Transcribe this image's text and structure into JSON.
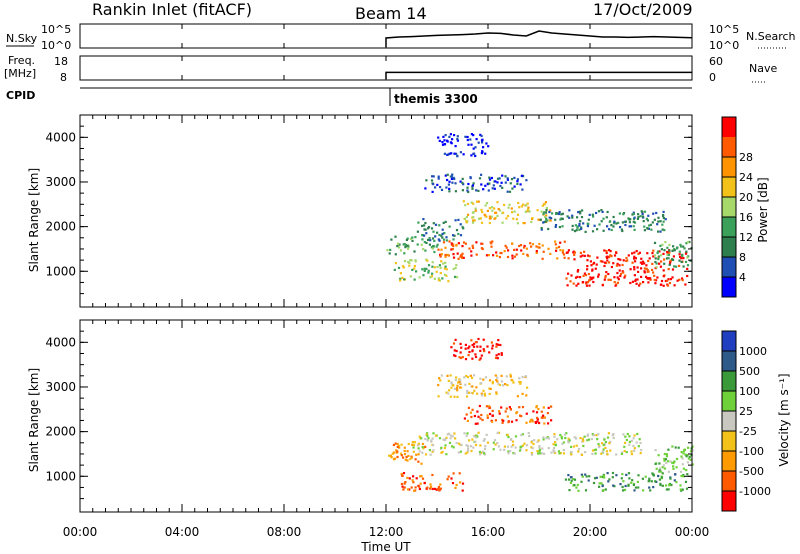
{
  "header": {
    "station": "Rankin Inlet (fitACF)",
    "beam": "Beam 14",
    "date": "17/Oct/2009"
  },
  "strip_panels": {
    "nsky": {
      "left_label": "N.Sky",
      "left_ticks": [
        "10^5",
        "10^0"
      ],
      "right_label": "N.Search",
      "right_ticks": [
        "10^5",
        "10^0"
      ]
    },
    "freq": {
      "left_label": "Freq.",
      "left_units": "[MHz]",
      "left_ticks": [
        "18",
        "8"
      ],
      "right_label": "Nave",
      "right_ticks": [
        "60",
        "0"
      ]
    },
    "cpid": {
      "label": "CPID",
      "program": "themis 3300"
    }
  },
  "colors": {
    "power_scale": [
      "#0000ff",
      "#1f4fb4",
      "#2e7f4e",
      "#3aa05a",
      "#a6d96a",
      "#f2c11a",
      "#ff9400",
      "#ff5a00",
      "#ff0000"
    ],
    "velocity_scale": [
      "#ff0000",
      "#ff5a00",
      "#ff9a00",
      "#f2c11a",
      "#c8c8c0",
      "#6fd13a",
      "#3a9a3a",
      "#2e5a8a",
      "#1f3fc0"
    ]
  },
  "chart_data": [
    {
      "type": "line",
      "name": "N.Sky / N.Search",
      "x_unit": "hours UT",
      "x": [
        12.0,
        12.5,
        13.0,
        13.5,
        14.0,
        14.5,
        15.0,
        15.5,
        16.0,
        16.5,
        17.0,
        17.5,
        18.0,
        18.5,
        19.0,
        19.5,
        20.0,
        20.5,
        21.0,
        21.5,
        22.0,
        22.5,
        23.0,
        23.5,
        24.0
      ],
      "y_fraction": [
        0.45,
        0.5,
        0.52,
        0.55,
        0.58,
        0.6,
        0.62,
        0.65,
        0.7,
        0.68,
        0.6,
        0.55,
        0.8,
        0.7,
        0.65,
        0.6,
        0.55,
        0.5,
        0.5,
        0.48,
        0.5,
        0.52,
        0.5,
        0.48,
        0.46
      ],
      "ylim": [
        0,
        1
      ]
    },
    {
      "type": "line",
      "name": "Freq. / Nave",
      "x_unit": "hours UT",
      "x": [
        12.0,
        24.0
      ],
      "y": [
        11.0,
        11.0
      ],
      "ylim": [
        8,
        18
      ]
    },
    {
      "type": "heatmap",
      "parameter": "Power",
      "colorbar_label": "Power [dB]",
      "colorbar_ticks": [
        "4",
        "8",
        "12",
        "16",
        "20",
        "24",
        "28"
      ],
      "ylabel": "Slant Range [km]",
      "yticks": [
        "1000",
        "2000",
        "3000",
        "4000"
      ],
      "ylim": [
        200,
        4500
      ],
      "xlim": [
        0,
        24
      ],
      "regions": [
        {
          "t": [
            12.0,
            14.0
          ],
          "r": [
            1400,
            1800
          ],
          "level": 3
        },
        {
          "t": [
            12.3,
            14.8
          ],
          "r": [
            800,
            1300
          ],
          "level": 4
        },
        {
          "t": [
            13.2,
            15.0
          ],
          "r": [
            1700,
            2200
          ],
          "level": 2
        },
        {
          "t": [
            14.0,
            19.0
          ],
          "r": [
            1300,
            1700
          ],
          "level": 7
        },
        {
          "t": [
            15.0,
            18.5
          ],
          "r": [
            2100,
            2600
          ],
          "level": 5
        },
        {
          "t": [
            18.0,
            23.0
          ],
          "r": [
            1900,
            2400
          ],
          "level": 2
        },
        {
          "t": [
            19.0,
            23.8
          ],
          "r": [
            700,
            1500
          ],
          "level": 8
        },
        {
          "t": [
            22.5,
            24.0
          ],
          "r": [
            1100,
            1700
          ],
          "level": 3
        },
        {
          "t": [
            13.5,
            17.5
          ],
          "r": [
            2800,
            3200
          ],
          "level": 1
        },
        {
          "t": [
            14.0,
            16.0
          ],
          "r": [
            3600,
            4100
          ],
          "level": 0
        }
      ]
    },
    {
      "type": "heatmap",
      "parameter": "Velocity",
      "colorbar_label": "Velocity [m s⁻¹]",
      "colorbar_ticks": [
        "-1000",
        "-500",
        "-100",
        "-25",
        "25",
        "100",
        "500",
        "1000"
      ],
      "ylabel": "Slant Range [km]",
      "yticks": [
        "1000",
        "2000",
        "3000",
        "4000"
      ],
      "ylim": [
        200,
        4500
      ],
      "xlim": [
        0,
        24
      ],
      "regions": [
        {
          "t": [
            12.0,
            13.5
          ],
          "r": [
            1300,
            1800
          ],
          "level": 2
        },
        {
          "t": [
            12.5,
            15.0
          ],
          "r": [
            700,
            1100
          ],
          "level": 1
        },
        {
          "t": [
            13.0,
            22.0
          ],
          "r": [
            1500,
            2000
          ],
          "level": 4
        },
        {
          "t": [
            15.0,
            18.5
          ],
          "r": [
            2200,
            2600
          ],
          "level": 1
        },
        {
          "t": [
            19.0,
            23.8
          ],
          "r": [
            700,
            1100
          ],
          "level": 6
        },
        {
          "t": [
            22.5,
            24.0
          ],
          "r": [
            1100,
            1700
          ],
          "level": 5
        },
        {
          "t": [
            14.0,
            17.5
          ],
          "r": [
            2800,
            3300
          ],
          "level": 3
        },
        {
          "t": [
            14.5,
            16.5
          ],
          "r": [
            3600,
            4100
          ],
          "level": 0
        }
      ]
    }
  ],
  "x_axis": {
    "ticks": [
      "00:00",
      "04:00",
      "08:00",
      "12:00",
      "16:00",
      "20:00",
      "00:00"
    ],
    "label": "Time UT",
    "range_hours": [
      0,
      24
    ]
  }
}
